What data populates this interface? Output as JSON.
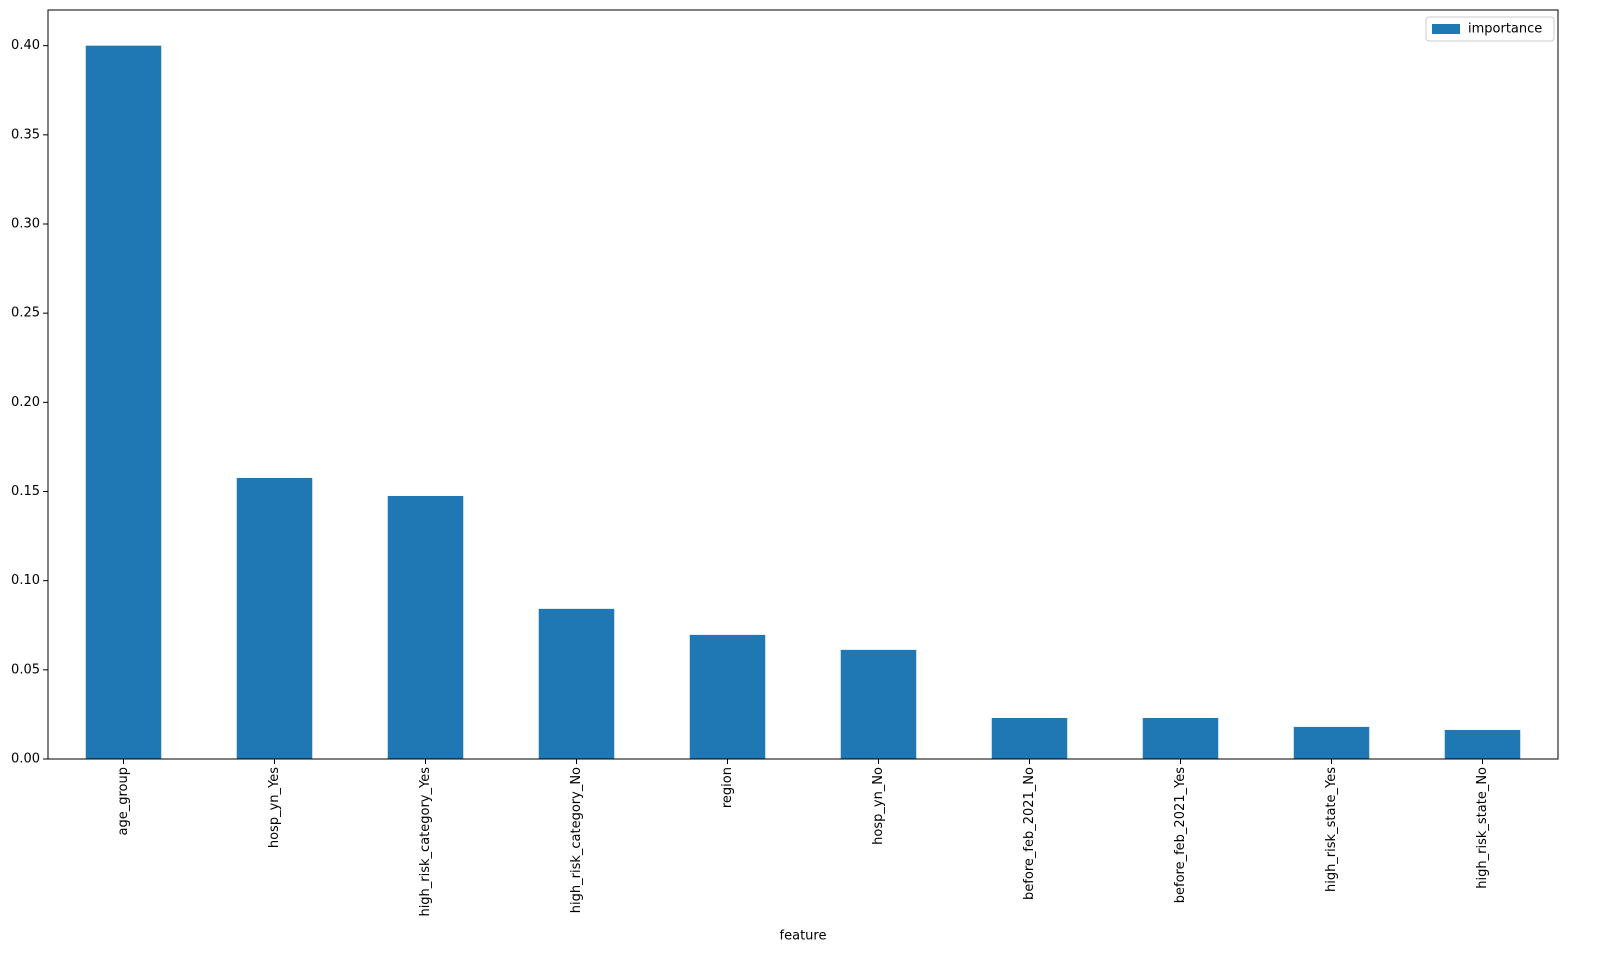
{
  "chart_data": {
    "type": "bar",
    "x_label": "feature",
    "categories": [
      "age_group",
      "hosp_yn_Yes",
      "high_risk_category_Yes",
      "high_risk_category_No",
      "region",
      "hosp_yn_No",
      "before_feb_2021_No",
      "before_feb_2021_Yes",
      "high_risk_state_Yes",
      "high_risk_state_No"
    ],
    "series": [
      {
        "name": "importance",
        "color": "#1f77b4",
        "values": [
          0.4,
          0.1576,
          0.1475,
          0.0842,
          0.0696,
          0.0612,
          0.023,
          0.023,
          0.018,
          0.0163
        ]
      }
    ],
    "ylim": [
      0,
      0.42
    ],
    "yticks": [
      {
        "value": 0,
        "label": "0.00"
      },
      {
        "value": 0.05,
        "label": "0.05"
      },
      {
        "value": 0.1,
        "label": "0.10"
      },
      {
        "value": 0.15,
        "label": "0.15"
      },
      {
        "value": 0.2,
        "label": "0.20"
      },
      {
        "value": 0.25,
        "label": "0.25"
      },
      {
        "value": 0.3,
        "label": "0.30"
      },
      {
        "value": 0.35,
        "label": "0.35"
      },
      {
        "value": 0.4,
        "label": "0.40"
      }
    ],
    "grid": false,
    "legend": "upper right"
  }
}
